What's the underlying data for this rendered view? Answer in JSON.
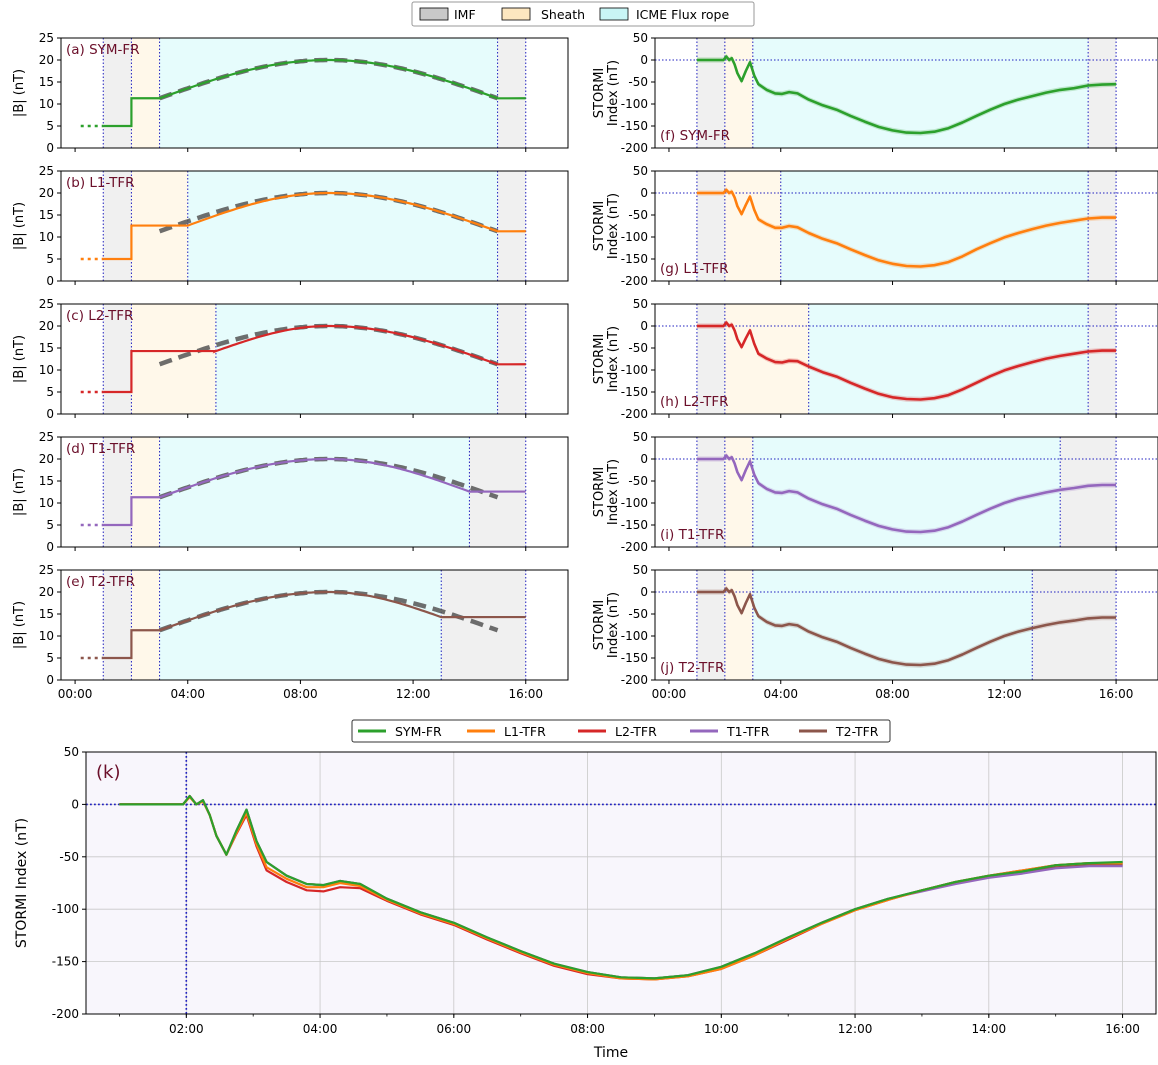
{
  "top_legend": [
    {
      "label": "IMF",
      "color": "#c8c8c8"
    },
    {
      "label": "Sheath",
      "color": "#fde7c0"
    },
    {
      "label": "ICME Flux rope",
      "color": "#c8f5f5"
    }
  ],
  "bottom_legend": [
    {
      "label": "SYM-FR",
      "color": "#2ca02c"
    },
    {
      "label": "L1-TFR",
      "color": "#ff7f0e"
    },
    {
      "label": "L2-TFR",
      "color": "#d62728"
    },
    {
      "label": "T1-TFR",
      "color": "#9467bd"
    },
    {
      "label": "T2-TFR",
      "color": "#8c564b"
    }
  ],
  "chart_data": [
    {
      "type": "line",
      "panel": "(a) SYM-FR",
      "ylabel": "|B| (nT)",
      "ylim": [
        0,
        25
      ],
      "yticks": [
        0,
        5,
        10,
        15,
        20,
        25
      ],
      "xlim_hours": [
        -0.5,
        17.5
      ],
      "xticks": [
        "00:00",
        "04:00",
        "08:00",
        "12:00",
        "16:00"
      ],
      "color": "#2ca02c",
      "regions": {
        "imf_start": 1,
        "sheath_start": 2,
        "flux_rope_start": 3,
        "flux_rope_end": 15,
        "end": 16
      },
      "upstream_B": 5,
      "sheath_B": 11.3,
      "trailing_B": 11.3,
      "flux_rope_peak_B": 20,
      "flux_rope_peak_time": 9
    },
    {
      "type": "line",
      "panel": "(b) L1-TFR",
      "ylabel": "|B| (nT)",
      "ylim": [
        0,
        25
      ],
      "yticks": [
        0,
        5,
        10,
        15,
        20,
        25
      ],
      "xlim_hours": [
        -0.5,
        17.5
      ],
      "xticks": [
        "00:00",
        "04:00",
        "08:00",
        "12:00",
        "16:00"
      ],
      "color": "#ff7f0e",
      "regions": {
        "imf_start": 1,
        "sheath_start": 2,
        "flux_rope_start": 4,
        "flux_rope_end": 15,
        "end": 16
      },
      "upstream_B": 5,
      "sheath_B": 12.6,
      "trailing_B": 11.3,
      "flux_rope_peak_B": 20,
      "flux_rope_peak_time": 9
    },
    {
      "type": "line",
      "panel": "(c) L2-TFR",
      "ylabel": "|B| (nT)",
      "ylim": [
        0,
        25
      ],
      "yticks": [
        0,
        5,
        10,
        15,
        20,
        25
      ],
      "xlim_hours": [
        -0.5,
        17.5
      ],
      "xticks": [
        "00:00",
        "04:00",
        "08:00",
        "12:00",
        "16:00"
      ],
      "color": "#d62728",
      "regions": {
        "imf_start": 1,
        "sheath_start": 2,
        "flux_rope_start": 5,
        "flux_rope_end": 15,
        "end": 16
      },
      "upstream_B": 5,
      "sheath_B": 14.3,
      "trailing_B": 11.3,
      "flux_rope_peak_B": 20,
      "flux_rope_peak_time": 9
    },
    {
      "type": "line",
      "panel": "(d) T1-TFR",
      "ylabel": "|B| (nT)",
      "ylim": [
        0,
        25
      ],
      "yticks": [
        0,
        5,
        10,
        15,
        20,
        25
      ],
      "xlim_hours": [
        -0.5,
        17.5
      ],
      "xticks": [
        "00:00",
        "04:00",
        "08:00",
        "12:00",
        "16:00"
      ],
      "color": "#9467bd",
      "regions": {
        "imf_start": 1,
        "sheath_start": 2,
        "flux_rope_start": 3,
        "flux_rope_end": 14,
        "end": 16
      },
      "upstream_B": 5,
      "sheath_B": 11.3,
      "trailing_B": 12.6,
      "flux_rope_peak_B": 20,
      "flux_rope_peak_time": 9
    },
    {
      "type": "line",
      "panel": "(e) T2-TFR",
      "ylabel": "|B| (nT)",
      "ylim": [
        0,
        25
      ],
      "yticks": [
        0,
        5,
        10,
        15,
        20,
        25
      ],
      "xlim_hours": [
        -0.5,
        17.5
      ],
      "xticks": [
        "00:00",
        "04:00",
        "08:00",
        "12:00",
        "16:00"
      ],
      "color": "#8c564b",
      "regions": {
        "imf_start": 1,
        "sheath_start": 2,
        "flux_rope_start": 3,
        "flux_rope_end": 13,
        "end": 16
      },
      "upstream_B": 5,
      "sheath_B": 11.3,
      "trailing_B": 14.3,
      "flux_rope_peak_B": 20,
      "flux_rope_peak_time": 9
    },
    {
      "type": "line",
      "panel": "(f) SYM-FR",
      "ylabel": "STORMI Index (nT)",
      "ylim": [
        -200,
        50
      ],
      "yticks": [
        -200,
        -150,
        -100,
        -50,
        0,
        50
      ],
      "xlim_hours": [
        -0.5,
        17.5
      ],
      "xticks": [
        "00:00",
        "04:00",
        "08:00",
        "12:00",
        "16:00"
      ],
      "color": "#2ca02c",
      "regions": {
        "imf_start": 1,
        "sheath_start": 2,
        "flux_rope_start": 3,
        "flux_rope_end": 15,
        "end": 16
      },
      "x_hours": [
        1,
        1.8,
        1.95,
        2.05,
        2.15,
        2.25,
        2.35,
        2.45,
        2.6,
        2.75,
        2.9,
        3.05,
        3.2,
        3.5,
        3.8,
        4.05,
        4.3,
        4.6,
        5,
        5.5,
        6,
        6.5,
        7,
        7.5,
        8,
        8.5,
        9,
        9.5,
        10,
        10.5,
        11,
        11.5,
        12,
        12.5,
        13,
        13.5,
        14,
        14.5,
        15,
        15.5,
        16
      ],
      "y": [
        0,
        0,
        0,
        8,
        0,
        4,
        -10,
        -30,
        -48,
        -25,
        -5,
        -35,
        -55,
        -68,
        -76,
        -77,
        -73,
        -76,
        -90,
        -103,
        -113,
        -127,
        -140,
        -152,
        -160,
        -165,
        -166,
        -163,
        -155,
        -142,
        -127,
        -113,
        -100,
        -90,
        -82,
        -74,
        -68,
        -64,
        -58,
        -56,
        -55
      ]
    },
    {
      "type": "line",
      "panel": "(g) L1-TFR",
      "ylabel": "STORMI Index (nT)",
      "ylim": [
        -200,
        50
      ],
      "yticks": [
        -200,
        -150,
        -100,
        -50,
        0,
        50
      ],
      "xlim_hours": [
        -0.5,
        17.5
      ],
      "xticks": [
        "00:00",
        "04:00",
        "08:00",
        "12:00",
        "16:00"
      ],
      "color": "#ff7f0e",
      "regions": {
        "imf_start": 1,
        "sheath_start": 2,
        "flux_rope_start": 4,
        "flux_rope_end": 15,
        "end": 16
      },
      "x_hours": [
        1,
        1.8,
        1.95,
        2.05,
        2.15,
        2.25,
        2.35,
        2.45,
        2.6,
        2.75,
        2.9,
        3.05,
        3.2,
        3.5,
        3.8,
        4.05,
        4.3,
        4.6,
        5,
        5.5,
        6,
        6.5,
        7,
        7.5,
        8,
        8.5,
        9,
        9.5,
        10,
        10.5,
        11,
        11.5,
        12,
        12.5,
        13,
        13.5,
        14,
        14.5,
        15,
        15.5,
        16
      ],
      "y": [
        0,
        0,
        0,
        7,
        0,
        3,
        -10,
        -30,
        -48,
        -27,
        -8,
        -38,
        -60,
        -71,
        -79,
        -79,
        -75,
        -78,
        -91,
        -104,
        -114,
        -128,
        -141,
        -153,
        -161,
        -166,
        -167,
        -164,
        -157,
        -144,
        -128,
        -114,
        -101,
        -91,
        -82,
        -74,
        -68,
        -63,
        -58,
        -56,
        -56
      ]
    },
    {
      "type": "line",
      "panel": "(h) L2-TFR",
      "ylabel": "STORMI Index (nT)",
      "ylim": [
        -200,
        50
      ],
      "yticks": [
        -200,
        -150,
        -100,
        -50,
        0,
        50
      ],
      "xlim_hours": [
        -0.5,
        17.5
      ],
      "xticks": [
        "00:00",
        "04:00",
        "08:00",
        "12:00",
        "16:00"
      ],
      "color": "#d62728",
      "regions": {
        "imf_start": 1,
        "sheath_start": 2,
        "flux_rope_start": 5,
        "flux_rope_end": 15,
        "end": 16
      },
      "x_hours": [
        1,
        1.8,
        1.95,
        2.05,
        2.15,
        2.25,
        2.35,
        2.45,
        2.6,
        2.75,
        2.9,
        3.05,
        3.2,
        3.5,
        3.8,
        4.05,
        4.3,
        4.6,
        5,
        5.5,
        6,
        6.5,
        7,
        7.5,
        8,
        8.5,
        9,
        9.5,
        10,
        10.5,
        11,
        11.5,
        12,
        12.5,
        13,
        13.5,
        14,
        14.5,
        15,
        15.5,
        16
      ],
      "y": [
        0,
        0,
        0,
        8,
        0,
        3,
        -10,
        -30,
        -48,
        -28,
        -10,
        -40,
        -63,
        -74,
        -82,
        -83,
        -79,
        -80,
        -92,
        -105,
        -115,
        -129,
        -142,
        -154,
        -162,
        -166,
        -167,
        -164,
        -157,
        -144,
        -129,
        -114,
        -101,
        -91,
        -82,
        -74,
        -68,
        -63,
        -58,
        -56,
        -56
      ]
    },
    {
      "type": "line",
      "panel": "(i) T1-TFR",
      "ylabel": "STORMI Index (nT)",
      "ylim": [
        -200,
        50
      ],
      "yticks": [
        -200,
        -150,
        -100,
        -50,
        0,
        50
      ],
      "xlim_hours": [
        -0.5,
        17.5
      ],
      "xticks": [
        "00:00",
        "04:00",
        "08:00",
        "12:00",
        "16:00"
      ],
      "color": "#9467bd",
      "regions": {
        "imf_start": 1,
        "sheath_start": 2,
        "flux_rope_start": 3,
        "flux_rope_end": 14,
        "end": 16
      },
      "x_hours": [
        1,
        1.8,
        1.95,
        2.05,
        2.15,
        2.25,
        2.35,
        2.45,
        2.6,
        2.75,
        2.9,
        3.05,
        3.2,
        3.5,
        3.8,
        4.05,
        4.3,
        4.6,
        5,
        5.5,
        6,
        6.5,
        7,
        7.5,
        8,
        8.5,
        9,
        9.5,
        10,
        10.5,
        11,
        11.5,
        12,
        12.5,
        13,
        13.5,
        14,
        14.5,
        15,
        15.5,
        16
      ],
      "y": [
        0,
        0,
        0,
        8,
        0,
        4,
        -10,
        -30,
        -48,
        -25,
        -5,
        -35,
        -55,
        -68,
        -76,
        -77,
        -73,
        -76,
        -90,
        -103,
        -113,
        -127,
        -140,
        -152,
        -160,
        -165,
        -166,
        -163,
        -155,
        -142,
        -127,
        -113,
        -100,
        -90,
        -83,
        -76,
        -70,
        -66,
        -61,
        -59,
        -59
      ]
    },
    {
      "type": "line",
      "panel": "(j) T2-TFR",
      "ylabel": "STORMI Index (nT)",
      "ylim": [
        -200,
        50
      ],
      "yticks": [
        -200,
        -150,
        -100,
        -50,
        0,
        50
      ],
      "xlim_hours": [
        -0.5,
        17.5
      ],
      "xticks": [
        "00:00",
        "04:00",
        "08:00",
        "12:00",
        "16:00"
      ],
      "color": "#8c564b",
      "regions": {
        "imf_start": 1,
        "sheath_start": 2,
        "flux_rope_start": 3,
        "flux_rope_end": 13,
        "end": 16
      },
      "x_hours": [
        1,
        1.8,
        1.95,
        2.05,
        2.15,
        2.25,
        2.35,
        2.45,
        2.6,
        2.75,
        2.9,
        3.05,
        3.2,
        3.5,
        3.8,
        4.05,
        4.3,
        4.6,
        5,
        5.5,
        6,
        6.5,
        7,
        7.5,
        8,
        8.5,
        9,
        9.5,
        10,
        10.5,
        11,
        11.5,
        12,
        12.5,
        13,
        13.5,
        14,
        14.5,
        15,
        15.5,
        16
      ],
      "y": [
        0,
        0,
        0,
        8,
        0,
        4,
        -10,
        -30,
        -48,
        -25,
        -5,
        -35,
        -55,
        -68,
        -76,
        -77,
        -73,
        -76,
        -90,
        -103,
        -113,
        -127,
        -140,
        -152,
        -160,
        -165,
        -166,
        -163,
        -155,
        -142,
        -127,
        -113,
        -100,
        -90,
        -82,
        -75,
        -69,
        -65,
        -60,
        -58,
        -58
      ]
    },
    {
      "type": "line",
      "panel": "(k)",
      "xlabel": "Time",
      "ylabel": "STORMI Index (nT)",
      "ylim": [
        -200,
        50
      ],
      "yticks": [
        -200,
        -150,
        -100,
        -50,
        0,
        50
      ],
      "xlim_hours": [
        0.5,
        16.5
      ],
      "xticks": [
        "02:00",
        "04:00",
        "06:00",
        "08:00",
        "10:00",
        "12:00",
        "14:00",
        "16:00"
      ],
      "grid": true,
      "legend": "top-center",
      "x_hours": [
        1,
        1.8,
        1.95,
        2.05,
        2.15,
        2.25,
        2.35,
        2.45,
        2.6,
        2.75,
        2.9,
        3.05,
        3.2,
        3.5,
        3.8,
        4.05,
        4.3,
        4.6,
        5,
        5.5,
        6,
        6.5,
        7,
        7.5,
        8,
        8.5,
        9,
        9.5,
        10,
        10.5,
        11,
        11.5,
        12,
        12.5,
        13,
        13.5,
        14,
        14.5,
        15,
        15.5,
        16
      ],
      "series": [
        {
          "name": "SYM-FR",
          "color": "#2ca02c",
          "y": [
            0,
            0,
            0,
            8,
            0,
            4,
            -10,
            -30,
            -48,
            -25,
            -5,
            -35,
            -55,
            -68,
            -76,
            -77,
            -73,
            -76,
            -90,
            -103,
            -113,
            -127,
            -140,
            -152,
            -160,
            -165,
            -166,
            -163,
            -155,
            -142,
            -127,
            -113,
            -100,
            -90,
            -82,
            -74,
            -68,
            -64,
            -58,
            -56,
            -55
          ]
        },
        {
          "name": "L1-TFR",
          "color": "#ff7f0e",
          "y": [
            0,
            0,
            0,
            7,
            0,
            3,
            -10,
            -30,
            -48,
            -27,
            -8,
            -38,
            -60,
            -71,
            -79,
            -79,
            -75,
            -78,
            -91,
            -104,
            -114,
            -128,
            -141,
            -153,
            -161,
            -166,
            -167,
            -164,
            -157,
            -144,
            -128,
            -114,
            -101,
            -91,
            -82,
            -74,
            -68,
            -63,
            -58,
            -56,
            -56
          ]
        },
        {
          "name": "L2-TFR",
          "color": "#d62728",
          "y": [
            0,
            0,
            0,
            8,
            0,
            3,
            -10,
            -30,
            -48,
            -28,
            -10,
            -40,
            -63,
            -74,
            -82,
            -83,
            -79,
            -80,
            -92,
            -105,
            -115,
            -129,
            -142,
            -154,
            -162,
            -166,
            -167,
            -164,
            -157,
            -144,
            -129,
            -114,
            -101,
            -91,
            -82,
            -74,
            -68,
            -63,
            -58,
            -56,
            -56
          ]
        },
        {
          "name": "T1-TFR",
          "color": "#9467bd",
          "y": [
            0,
            0,
            0,
            8,
            0,
            4,
            -10,
            -30,
            -48,
            -25,
            -5,
            -35,
            -55,
            -68,
            -76,
            -77,
            -73,
            -76,
            -90,
            -103,
            -113,
            -127,
            -140,
            -152,
            -160,
            -165,
            -166,
            -163,
            -155,
            -142,
            -127,
            -113,
            -100,
            -90,
            -83,
            -76,
            -70,
            -66,
            -61,
            -59,
            -59
          ]
        },
        {
          "name": "T2-TFR",
          "color": "#8c564b",
          "y": [
            0,
            0,
            0,
            8,
            0,
            4,
            -10,
            -30,
            -48,
            -25,
            -5,
            -35,
            -55,
            -68,
            -76,
            -77,
            -73,
            -76,
            -90,
            -103,
            -113,
            -127,
            -140,
            -152,
            -160,
            -165,
            -166,
            -163,
            -155,
            -142,
            -127,
            -113,
            -100,
            -90,
            -82,
            -75,
            -69,
            -65,
            -60,
            -58,
            -58
          ]
        }
      ]
    }
  ]
}
